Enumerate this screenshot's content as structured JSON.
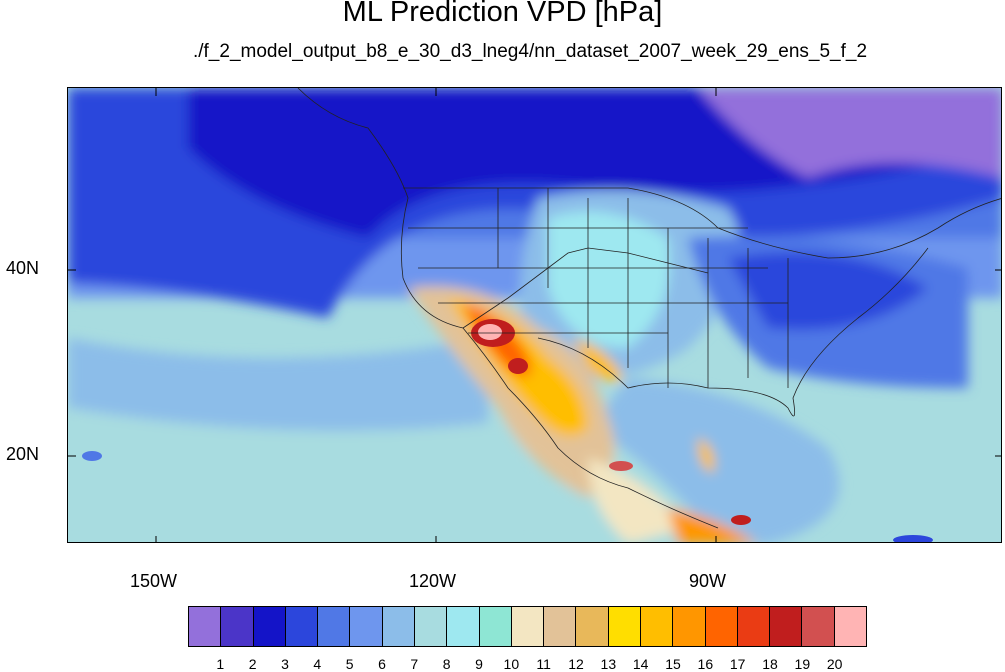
{
  "title": "ML Prediction VPD [hPa]",
  "subtitle": "./f_2_model_output_b8_e_30_d3_lneg4/nn_dataset_2007_week_29_ens_5_f_2",
  "axes": {
    "lat_labels": [
      "40N",
      "20N"
    ],
    "lon_labels": [
      "150W",
      "120W",
      "90W"
    ]
  },
  "legend": {
    "labels": [
      "1",
      "2",
      "3",
      "4",
      "5",
      "6",
      "7",
      "8",
      "9",
      "10",
      "11",
      "12",
      "13",
      "14",
      "15",
      "16",
      "17",
      "18",
      "19",
      "20"
    ],
    "colors": [
      "#9370db",
      "#4b35c8",
      "#1414c8",
      "#2c46dc",
      "#5078e6",
      "#6e96ee",
      "#8cbde9",
      "#a8dce0",
      "#9ee8f0",
      "#8ee6d4",
      "#f3e6c2",
      "#e2c298",
      "#e8b85a",
      "#ffde00",
      "#ffbe00",
      "#ff9600",
      "#ff6400",
      "#ea3c14",
      "#c01e1e",
      "#d25050",
      "#ffb4b4"
    ]
  }
}
